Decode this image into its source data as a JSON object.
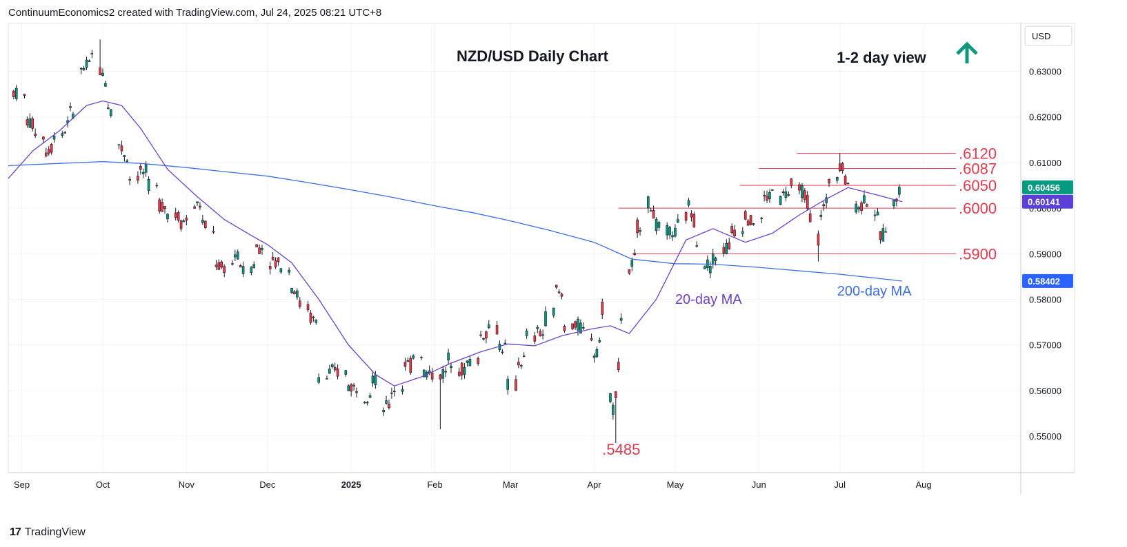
{
  "header": {
    "attribution": "ContinuumEconomics2 created with TradingView.com, Jul 24, 2025 08:21 UTC+8"
  },
  "footer": {
    "logo_glyph": "17",
    "brand": "TradingView"
  },
  "chart_data": {
    "type": "candlestick",
    "title": "NZD/USD Daily Chart",
    "view_label": "1-2 day view",
    "view_direction": "up",
    "currency_label": "USD",
    "ylim": [
      0.542,
      0.6405
    ],
    "y_ticks": [
      "0.63000",
      "0.62000",
      "0.61000",
      "0.60000",
      "0.59000",
      "0.58000",
      "0.57000",
      "0.56000",
      "0.55000"
    ],
    "x_ticks": [
      {
        "label": "Sep",
        "date": "2024-09-01"
      },
      {
        "label": "Oct",
        "date": "2024-10-01"
      },
      {
        "label": "Nov",
        "date": "2024-11-01"
      },
      {
        "label": "Dec",
        "date": "2024-12-01"
      },
      {
        "label": "2025",
        "date": "2025-01-01"
      },
      {
        "label": "Feb",
        "date": "2025-02-01"
      },
      {
        "label": "Mar",
        "date": "2025-03-01"
      },
      {
        "label": "Apr",
        "date": "2025-04-01"
      },
      {
        "label": "May",
        "date": "2025-05-01"
      },
      {
        "label": "Jun",
        "date": "2025-06-01"
      },
      {
        "label": "Jul",
        "date": "2025-07-01"
      },
      {
        "label": "Aug",
        "date": "2025-08-01"
      }
    ],
    "x_range": [
      "2024-08-27",
      "2025-09-06"
    ],
    "levels": [
      {
        "label": ".6120",
        "value": 0.612,
        "start": "2025-06-15"
      },
      {
        "label": ".6087",
        "value": 0.6087,
        "start": "2025-06-01"
      },
      {
        "label": ".6050",
        "value": 0.605,
        "start": "2025-05-25"
      },
      {
        "label": ".6000",
        "value": 0.6,
        "start": "2025-04-10"
      },
      {
        "label": ".5900",
        "value": 0.59,
        "start": "2025-04-15"
      }
    ],
    "low_label": {
      "label": ".5485",
      "date": "2025-04-09",
      "value": 0.5485
    },
    "price_tags": [
      {
        "text": "0.60456",
        "value": 0.60456,
        "bg": "#089981"
      },
      {
        "text": "0.60141",
        "value": 0.60141,
        "bg": "#5b3fd6"
      },
      {
        "text": "0.58402",
        "value": 0.58402,
        "bg": "#2962ff"
      }
    ],
    "series": [
      {
        "name": "200-day MA",
        "color": "#3d6ee0",
        "points": [
          [
            "2024-08-27",
            0.6093
          ],
          [
            "2024-09-15",
            0.6098
          ],
          [
            "2024-10-01",
            0.6102
          ],
          [
            "2024-10-15",
            0.6098
          ],
          [
            "2024-11-01",
            0.6089
          ],
          [
            "2024-11-15",
            0.608
          ],
          [
            "2024-12-01",
            0.607
          ],
          [
            "2024-12-15",
            0.6057
          ],
          [
            "2025-01-01",
            0.604
          ],
          [
            "2025-01-15",
            0.6025
          ],
          [
            "2025-02-01",
            0.6005
          ],
          [
            "2025-02-15",
            0.599
          ],
          [
            "2025-03-01",
            0.5972
          ],
          [
            "2025-03-15",
            0.5952
          ],
          [
            "2025-04-01",
            0.5925
          ],
          [
            "2025-04-15",
            0.5888
          ],
          [
            "2025-05-01",
            0.5878
          ],
          [
            "2025-05-15",
            0.5877
          ],
          [
            "2025-06-01",
            0.587
          ],
          [
            "2025-06-15",
            0.5863
          ],
          [
            "2025-07-01",
            0.5855
          ],
          [
            "2025-07-15",
            0.5846
          ],
          [
            "2025-07-24",
            0.584
          ]
        ]
      },
      {
        "name": "20-day MA",
        "color": "#6a41c9",
        "points": [
          [
            "2024-08-27",
            0.6065
          ],
          [
            "2024-09-05",
            0.6125
          ],
          [
            "2024-09-15",
            0.617
          ],
          [
            "2024-09-25",
            0.6225
          ],
          [
            "2024-10-01",
            0.6235
          ],
          [
            "2024-10-08",
            0.6225
          ],
          [
            "2024-10-15",
            0.6175
          ],
          [
            "2024-10-25",
            0.6085
          ],
          [
            "2024-11-05",
            0.6025
          ],
          [
            "2024-11-15",
            0.5975
          ],
          [
            "2024-11-25",
            0.594
          ],
          [
            "2024-12-01",
            0.592
          ],
          [
            "2024-12-10",
            0.588
          ],
          [
            "2024-12-20",
            0.58
          ],
          [
            "2024-12-31",
            0.57
          ],
          [
            "2025-01-10",
            0.5635
          ],
          [
            "2025-01-17",
            0.561
          ],
          [
            "2025-01-27",
            0.563
          ],
          [
            "2025-02-07",
            0.566
          ],
          [
            "2025-02-18",
            0.5685
          ],
          [
            "2025-02-28",
            0.5702
          ],
          [
            "2025-03-10",
            0.5698
          ],
          [
            "2025-03-20",
            0.572
          ],
          [
            "2025-03-31",
            0.5735
          ],
          [
            "2025-04-07",
            0.5742
          ],
          [
            "2025-04-14",
            0.5725
          ],
          [
            "2025-04-24",
            0.58
          ],
          [
            "2025-05-05",
            0.593
          ],
          [
            "2025-05-15",
            0.5955
          ],
          [
            "2025-05-27",
            0.5925
          ],
          [
            "2025-06-06",
            0.5945
          ],
          [
            "2025-06-16",
            0.5985
          ],
          [
            "2025-06-26",
            0.602
          ],
          [
            "2025-07-04",
            0.6045
          ],
          [
            "2025-07-14",
            0.603
          ],
          [
            "2025-07-24",
            0.6014
          ]
        ]
      }
    ],
    "annotations": [
      {
        "label": "20-day MA",
        "date": "2025-05-01",
        "value": 0.579,
        "color": "#6a41c9"
      },
      {
        "label": "200-day MA",
        "date": "2025-06-30",
        "value": 0.5808,
        "color": "#3d6ee0"
      }
    ],
    "ohlc_anchors": [
      [
        "2024-08-29",
        0.6245,
        0.6255
      ],
      [
        "2024-09-03",
        0.624,
        0.619
      ],
      [
        "2024-09-06",
        0.618,
        0.617
      ],
      [
        "2024-09-10",
        0.615,
        0.6125
      ],
      [
        "2024-09-13",
        0.614,
        0.616
      ],
      [
        "2024-09-18",
        0.617,
        0.62
      ],
      [
        "2024-09-23",
        0.623,
        0.63
      ],
      [
        "2024-09-27",
        0.632,
        0.6335
      ],
      [
        "2024-09-30",
        0.632,
        0.63
      ],
      [
        "2024-10-03",
        0.627,
        0.6225
      ],
      [
        "2024-10-07",
        0.618,
        0.614
      ],
      [
        "2024-10-11",
        0.61,
        0.6065
      ],
      [
        "2024-10-15",
        0.6075,
        0.608
      ],
      [
        "2024-10-18",
        0.6075,
        0.605
      ],
      [
        "2024-10-22",
        0.604,
        0.601
      ],
      [
        "2024-10-25",
        0.6,
        0.599
      ],
      [
        "2024-10-30",
        0.598,
        0.597
      ],
      [
        "2024-11-04",
        0.598,
        0.6005
      ],
      [
        "2024-11-07",
        0.601,
        0.5965
      ],
      [
        "2024-11-12",
        0.594,
        0.588
      ],
      [
        "2024-11-15",
        0.586,
        0.587
      ],
      [
        "2024-11-19",
        0.588,
        0.59
      ],
      [
        "2024-11-22",
        0.587,
        0.586
      ],
      [
        "2024-11-27",
        0.588,
        0.5915
      ],
      [
        "2024-12-02",
        0.591,
        0.5885
      ],
      [
        "2024-12-05",
        0.588,
        0.588
      ],
      [
        "2024-12-10",
        0.586,
        0.583
      ],
      [
        "2024-12-13",
        0.58,
        0.579
      ],
      [
        "2024-12-17",
        0.578,
        0.576
      ],
      [
        "2024-12-20",
        0.5745,
        0.563
      ],
      [
        "2024-12-24",
        0.5625,
        0.564
      ],
      [
        "2024-12-31",
        0.564,
        0.561
      ],
      [
        "2025-01-06",
        0.56,
        0.559
      ],
      [
        "2025-01-09",
        0.56,
        0.563
      ],
      [
        "2025-01-13",
        0.559,
        0.556
      ],
      [
        "2025-01-16",
        0.557,
        0.56
      ],
      [
        "2025-01-21",
        0.561,
        0.566
      ],
      [
        "2025-01-24",
        0.565,
        0.568
      ],
      [
        "2025-01-28",
        0.568,
        0.564
      ],
      [
        "2025-02-03",
        0.563,
        0.5635
      ],
      [
        "2025-02-06",
        0.564,
        0.567
      ],
      [
        "2025-02-10",
        0.567,
        0.565
      ],
      [
        "2025-02-13",
        0.564,
        0.566
      ],
      [
        "2025-02-18",
        0.567,
        0.572
      ],
      [
        "2025-02-21",
        0.573,
        0.574
      ],
      [
        "2025-02-25",
        0.573,
        0.57
      ],
      [
        "2025-02-28",
        0.569,
        0.561
      ],
      [
        "2025-03-04",
        0.561,
        0.566
      ],
      [
        "2025-03-07",
        0.567,
        0.572
      ],
      [
        "2025-03-11",
        0.571,
        0.573
      ],
      [
        "2025-03-14",
        0.572,
        0.576
      ],
      [
        "2025-03-18",
        0.578,
        0.582
      ],
      [
        "2025-03-21",
        0.58,
        0.574
      ],
      [
        "2025-03-25",
        0.5745,
        0.574
      ],
      [
        "2025-03-28",
        0.574,
        0.573
      ],
      [
        "2025-04-01",
        0.572,
        0.568
      ],
      [
        "2025-04-04",
        0.572,
        0.578
      ],
      [
        "2025-04-07",
        0.57,
        0.559
      ],
      [
        "2025-04-09",
        0.553,
        0.56
      ],
      [
        "2025-04-10",
        0.56,
        0.565
      ],
      [
        "2025-04-11",
        0.568,
        0.576
      ],
      [
        "2025-04-14",
        0.58,
        0.586
      ],
      [
        "2025-04-17",
        0.59,
        0.596
      ],
      [
        "2025-04-21",
        0.598,
        0.601
      ],
      [
        "2025-04-24",
        0.598,
        0.596
      ],
      [
        "2025-04-29",
        0.594,
        0.595
      ],
      [
        "2025-05-02",
        0.594,
        0.596
      ],
      [
        "2025-05-06",
        0.599,
        0.6005
      ],
      [
        "2025-05-09",
        0.596,
        0.593
      ],
      [
        "2025-05-12",
        0.592,
        0.588
      ],
      [
        "2025-05-15",
        0.587,
        0.589
      ],
      [
        "2025-05-19",
        0.589,
        0.591
      ],
      [
        "2025-05-22",
        0.592,
        0.595
      ],
      [
        "2025-05-27",
        0.596,
        0.599
      ],
      [
        "2025-05-30",
        0.596,
        0.597
      ],
      [
        "2025-06-03",
        0.598,
        0.602
      ],
      [
        "2025-06-06",
        0.603,
        0.604
      ],
      [
        "2025-06-10",
        0.601,
        0.603
      ],
      [
        "2025-06-13",
        0.603,
        0.605
      ],
      [
        "2025-06-17",
        0.603,
        0.604
      ],
      [
        "2025-06-20",
        0.6,
        0.598
      ],
      [
        "2025-06-24",
        0.592,
        0.599
      ],
      [
        "2025-06-27",
        0.602,
        0.606
      ],
      [
        "2025-07-01",
        0.608,
        0.61
      ],
      [
        "2025-07-03",
        0.609,
        0.606
      ],
      [
        "2025-07-07",
        0.605,
        0.6
      ],
      [
        "2025-07-10",
        0.601,
        0.602
      ],
      [
        "2025-07-14",
        0.601,
        0.599
      ],
      [
        "2025-07-16",
        0.596,
        0.594
      ],
      [
        "2025-07-18",
        0.594,
        0.596
      ],
      [
        "2025-07-21",
        0.598,
        0.601
      ],
      [
        "2025-07-23",
        0.603,
        0.6046
      ]
    ]
  }
}
